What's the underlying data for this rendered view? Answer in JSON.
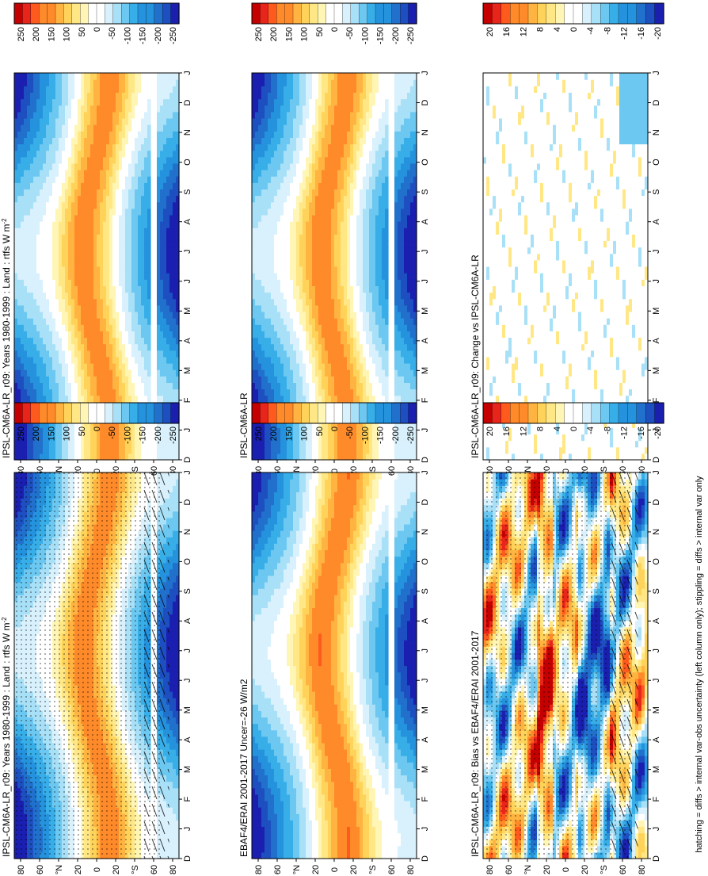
{
  "footer_note": "hatching = diffs > internal var-obs uncertainty (left column only); stippling = diffs > internal var only",
  "cb_abs_labels": [
    "250",
    "200",
    "150",
    "100",
    "50",
    "0",
    "-50",
    "-100",
    "-150",
    "-200",
    "-250"
  ],
  "cb_diff_labels": [
    "20",
    "16",
    "12",
    "8",
    "4",
    "0",
    "-4",
    "-8",
    "-12",
    "-16",
    "-20"
  ],
  "lat_labels": [
    "80",
    "60",
    "°N",
    "20",
    "0",
    "20",
    "°S",
    "60",
    "80"
  ],
  "month_labels": [
    "D",
    "J",
    "F",
    "M",
    "A",
    "M",
    "J",
    "J",
    "A",
    "S",
    "O",
    "N",
    "D",
    "J"
  ],
  "colors": {
    "warm": [
      "#fff5b4",
      "#ffe785",
      "#ffd35a",
      "#ffb340",
      "#ff8a2a",
      "#ff5a1e",
      "#e8251a",
      "#c40000"
    ],
    "cold": [
      "#d8f1fc",
      "#a8e0f7",
      "#6cc8f1",
      "#38aee8",
      "#2592dd",
      "#2070cc",
      "#1d4fc0",
      "#1a1fb0"
    ],
    "white": "#ffffff"
  },
  "chart_data": [
    {
      "type": "heatmap",
      "title": "IPSL-CM6A-LR_r09: Years 1980-1999 : Land : rtfs W m",
      "title_sup": "-2",
      "x": "month",
      "y": "latitude",
      "zlim": [
        -250,
        250
      ],
      "stippling": true,
      "hatching": true
    },
    {
      "type": "heatmap",
      "title": "EBAF4/ERAI 2001-2017 Uncer=-26 W/m2",
      "x": "month",
      "y": "latitude",
      "zlim": [
        -250,
        250
      ]
    },
    {
      "type": "heatmap",
      "title": "IPSL-CM6A-LR_r09: Bias vs EBAF4/ERAI 2001-2017",
      "x": "month",
      "y": "latitude",
      "zlim": [
        -20,
        20
      ],
      "stippling": true,
      "hatching": true
    },
    {
      "type": "heatmap",
      "title": "IPSL-CM6A-LR_r09: Years 1980-1999 : Land : rtfs W m",
      "title_sup": "-2",
      "x": "month",
      "y": "latitude",
      "zlim": [
        -250,
        250
      ]
    },
    {
      "type": "heatmap",
      "title": "IPSL-CM6A-LR",
      "x": "month",
      "y": "latitude",
      "zlim": [
        -250,
        250
      ]
    },
    {
      "type": "heatmap",
      "title": "IPSL-CM6A-LR_r09: Change vs IPSL-CM6A-LR",
      "x": "month",
      "y": "latitude",
      "zlim": [
        -20,
        20
      ]
    }
  ]
}
